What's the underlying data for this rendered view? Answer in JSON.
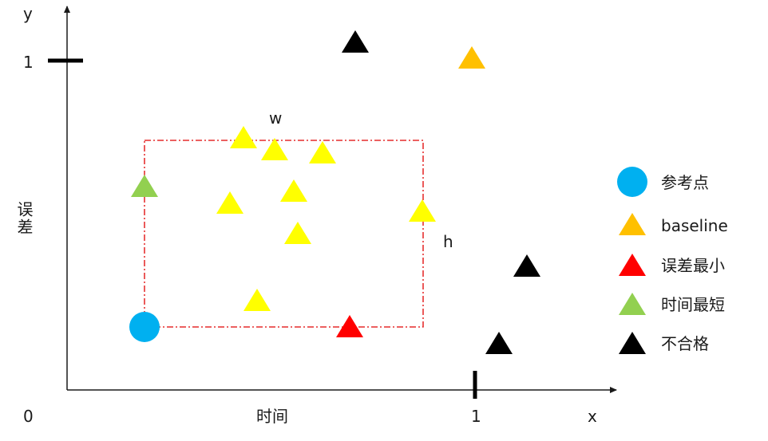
{
  "axes": {
    "x_name": "x",
    "y_name": "y",
    "origin_label": "0",
    "x_tick_label": "1",
    "y_tick_label": "1",
    "x_axis_title": "时间",
    "y_axis_title": "误差"
  },
  "box": {
    "width_label": "w",
    "height_label": "h"
  },
  "legend": [
    {
      "key": "reference",
      "label": "参考点",
      "shape": "circle",
      "color": "#00B0F0"
    },
    {
      "key": "baseline",
      "label": "baseline",
      "shape": "triangle",
      "color": "#FFC000"
    },
    {
      "key": "min_error",
      "label": "误差最小",
      "shape": "triangle",
      "color": "#FF0000"
    },
    {
      "key": "min_time",
      "label": "时间最短",
      "shape": "triangle",
      "color": "#92D050"
    },
    {
      "key": "unqualified",
      "label": "不合格",
      "shape": "triangle",
      "color": "#000000"
    }
  ],
  "candidate_color": "#FFFF00",
  "box_color": "#E00000"
}
